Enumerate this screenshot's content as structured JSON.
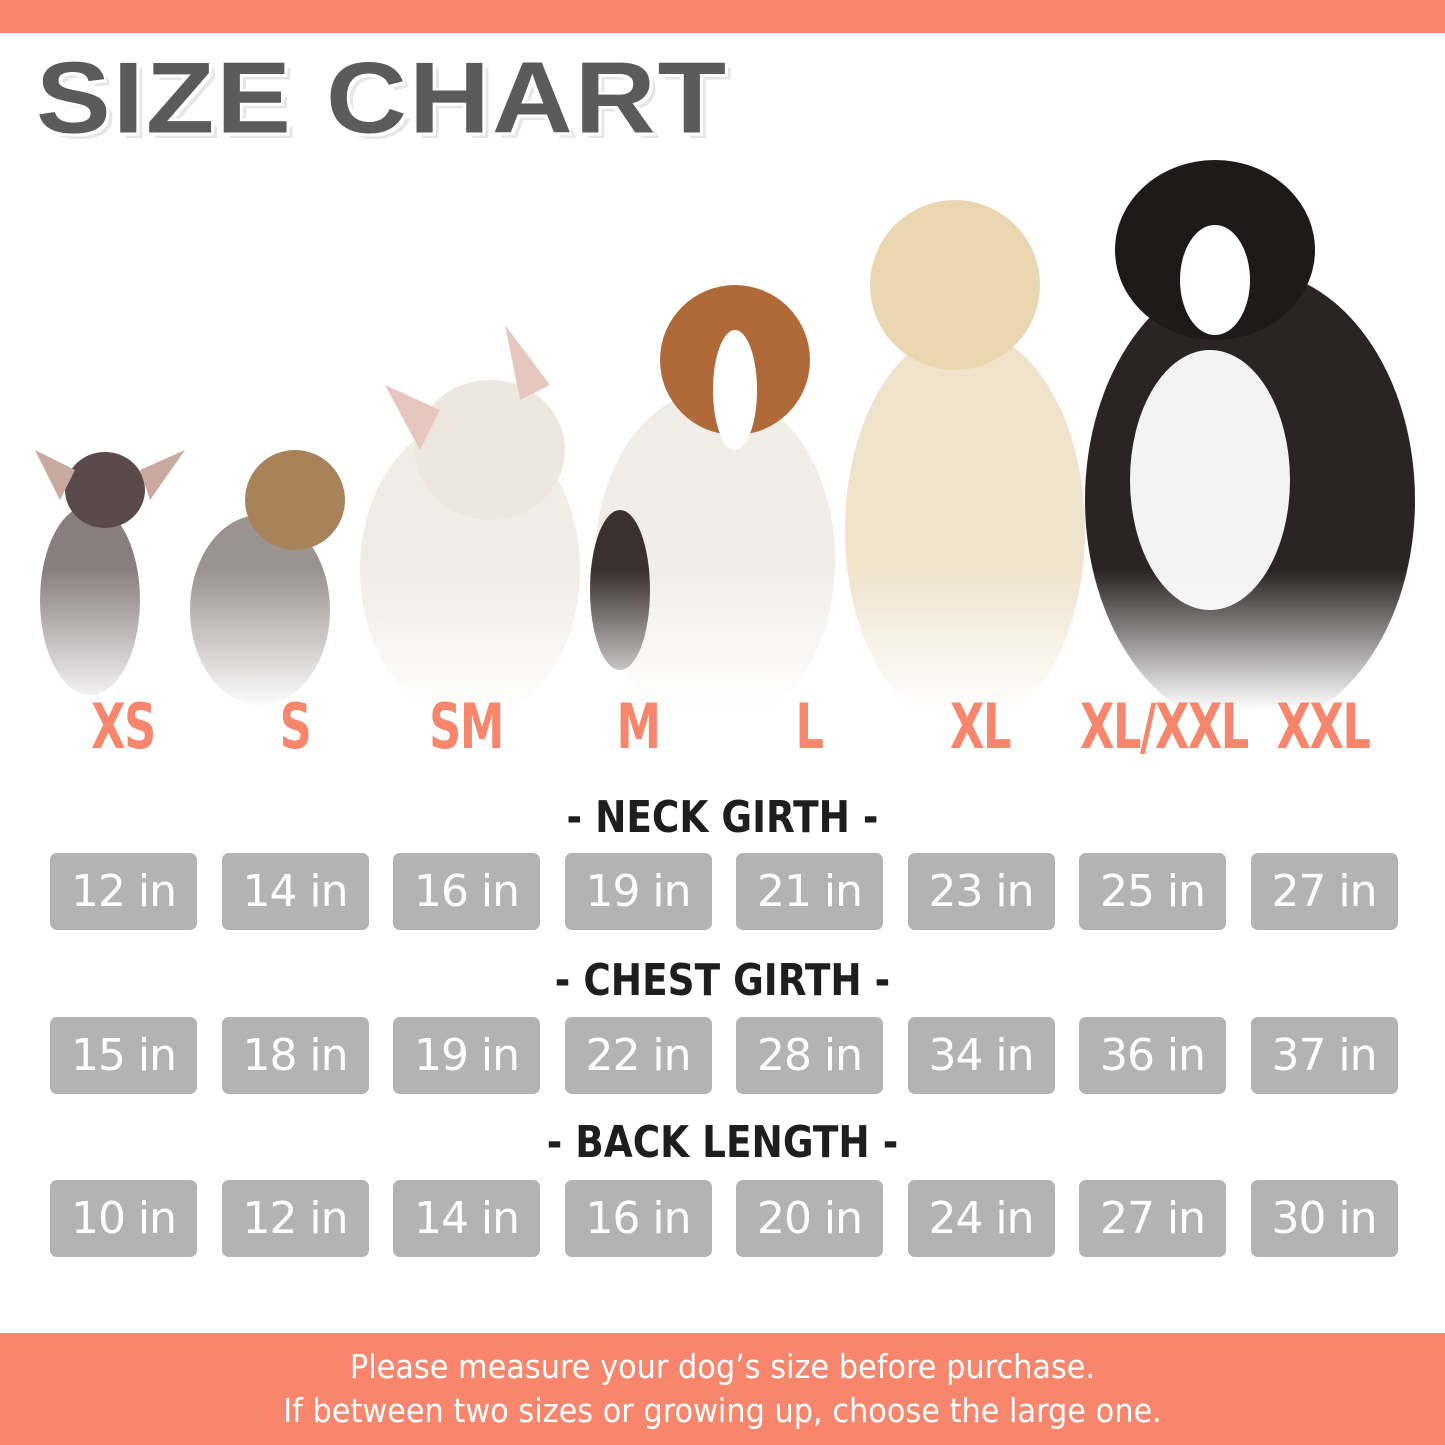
{
  "title": "SIZE CHART",
  "colors": {
    "accent": "#f7866d",
    "box": "#b3b3b3",
    "title": "#5b5b5b"
  },
  "sizes": [
    "XS",
    "S",
    "SM",
    "M",
    "L",
    "XL",
    "XL/XXL",
    "XXL"
  ],
  "dogs": [
    "chihuahua",
    "yorkshire-terrier",
    "french-bulldog",
    "beagle",
    "golden-retriever",
    "bernese-mountain-dog",
    "bernese-mountain-dog-large"
  ],
  "measurements": [
    {
      "heading": "- NECK GIRTH -",
      "values": [
        "12 in",
        "14 in",
        "16 in",
        "19 in",
        "21 in",
        "23 in",
        "25 in",
        "27 in"
      ]
    },
    {
      "heading": "- CHEST GIRTH -",
      "values": [
        "15 in",
        "18 in",
        "19 in",
        "22 in",
        "28 in",
        "34 in",
        "36 in",
        "37 in"
      ]
    },
    {
      "heading": "- BACK LENGTH -",
      "values": [
        "10 in",
        "12 in",
        "14 in",
        "16 in",
        "20 in",
        "24 in",
        "27 in",
        "30 in"
      ]
    }
  ],
  "footer": {
    "line1": "Please measure your dog’s size before purchase.",
    "line2": "If between two sizes or growing up, choose the large one."
  }
}
